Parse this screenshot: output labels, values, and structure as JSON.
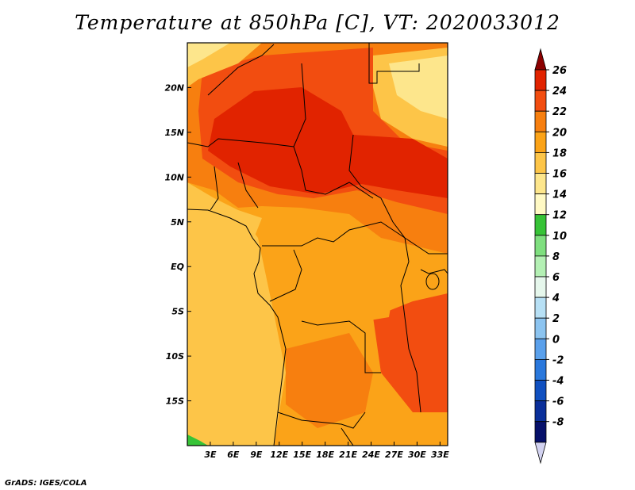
{
  "title": "Temperature at 850hPa [C], VT: 2020033012",
  "credit": "GrADS: IGES/COLA",
  "map": {
    "lon_range": [
      0,
      34
    ],
    "lat_range": [
      -20,
      25
    ],
    "x_ticks": [
      {
        "lon": 3,
        "label": "3E"
      },
      {
        "lon": 6,
        "label": "6E"
      },
      {
        "lon": 9,
        "label": "9E"
      },
      {
        "lon": 12,
        "label": "12E"
      },
      {
        "lon": 15,
        "label": "15E"
      },
      {
        "lon": 18,
        "label": "18E"
      },
      {
        "lon": 21,
        "label": "21E"
      },
      {
        "lon": 24,
        "label": "24E"
      },
      {
        "lon": 27,
        "label": "27E"
      },
      {
        "lon": 30,
        "label": "30E"
      },
      {
        "lon": 33,
        "label": "33E"
      }
    ],
    "y_ticks": [
      {
        "lat": 20,
        "label": "20N"
      },
      {
        "lat": 15,
        "label": "15N"
      },
      {
        "lat": 10,
        "label": "10N"
      },
      {
        "lat": 5,
        "label": "5N"
      },
      {
        "lat": 0,
        "label": "EQ"
      },
      {
        "lat": -5,
        "label": "5S"
      },
      {
        "lat": -10,
        "label": "10S"
      },
      {
        "lat": -15,
        "label": "15S"
      }
    ]
  },
  "colorbar": {
    "levels": [
      "26",
      "24",
      "22",
      "20",
      "18",
      "16",
      "14",
      "12",
      "10",
      "8",
      "6",
      "4",
      "2",
      "0",
      "-2",
      "-4",
      "-6",
      "-8"
    ],
    "colors": [
      "#8c0000",
      "#e12300",
      "#f24d10",
      "#f77f0f",
      "#fba318",
      "#fdc548",
      "#fde68c",
      "#fff9c4",
      "#37c337",
      "#7fdf7f",
      "#b4f0b4",
      "#e6f7ec",
      "#b7e0f5",
      "#8cc4f0",
      "#5aa0eb",
      "#2a78dc",
      "#1050c0",
      "#0a2f9a",
      "#06106a",
      "#d2d2f0"
    ]
  }
}
